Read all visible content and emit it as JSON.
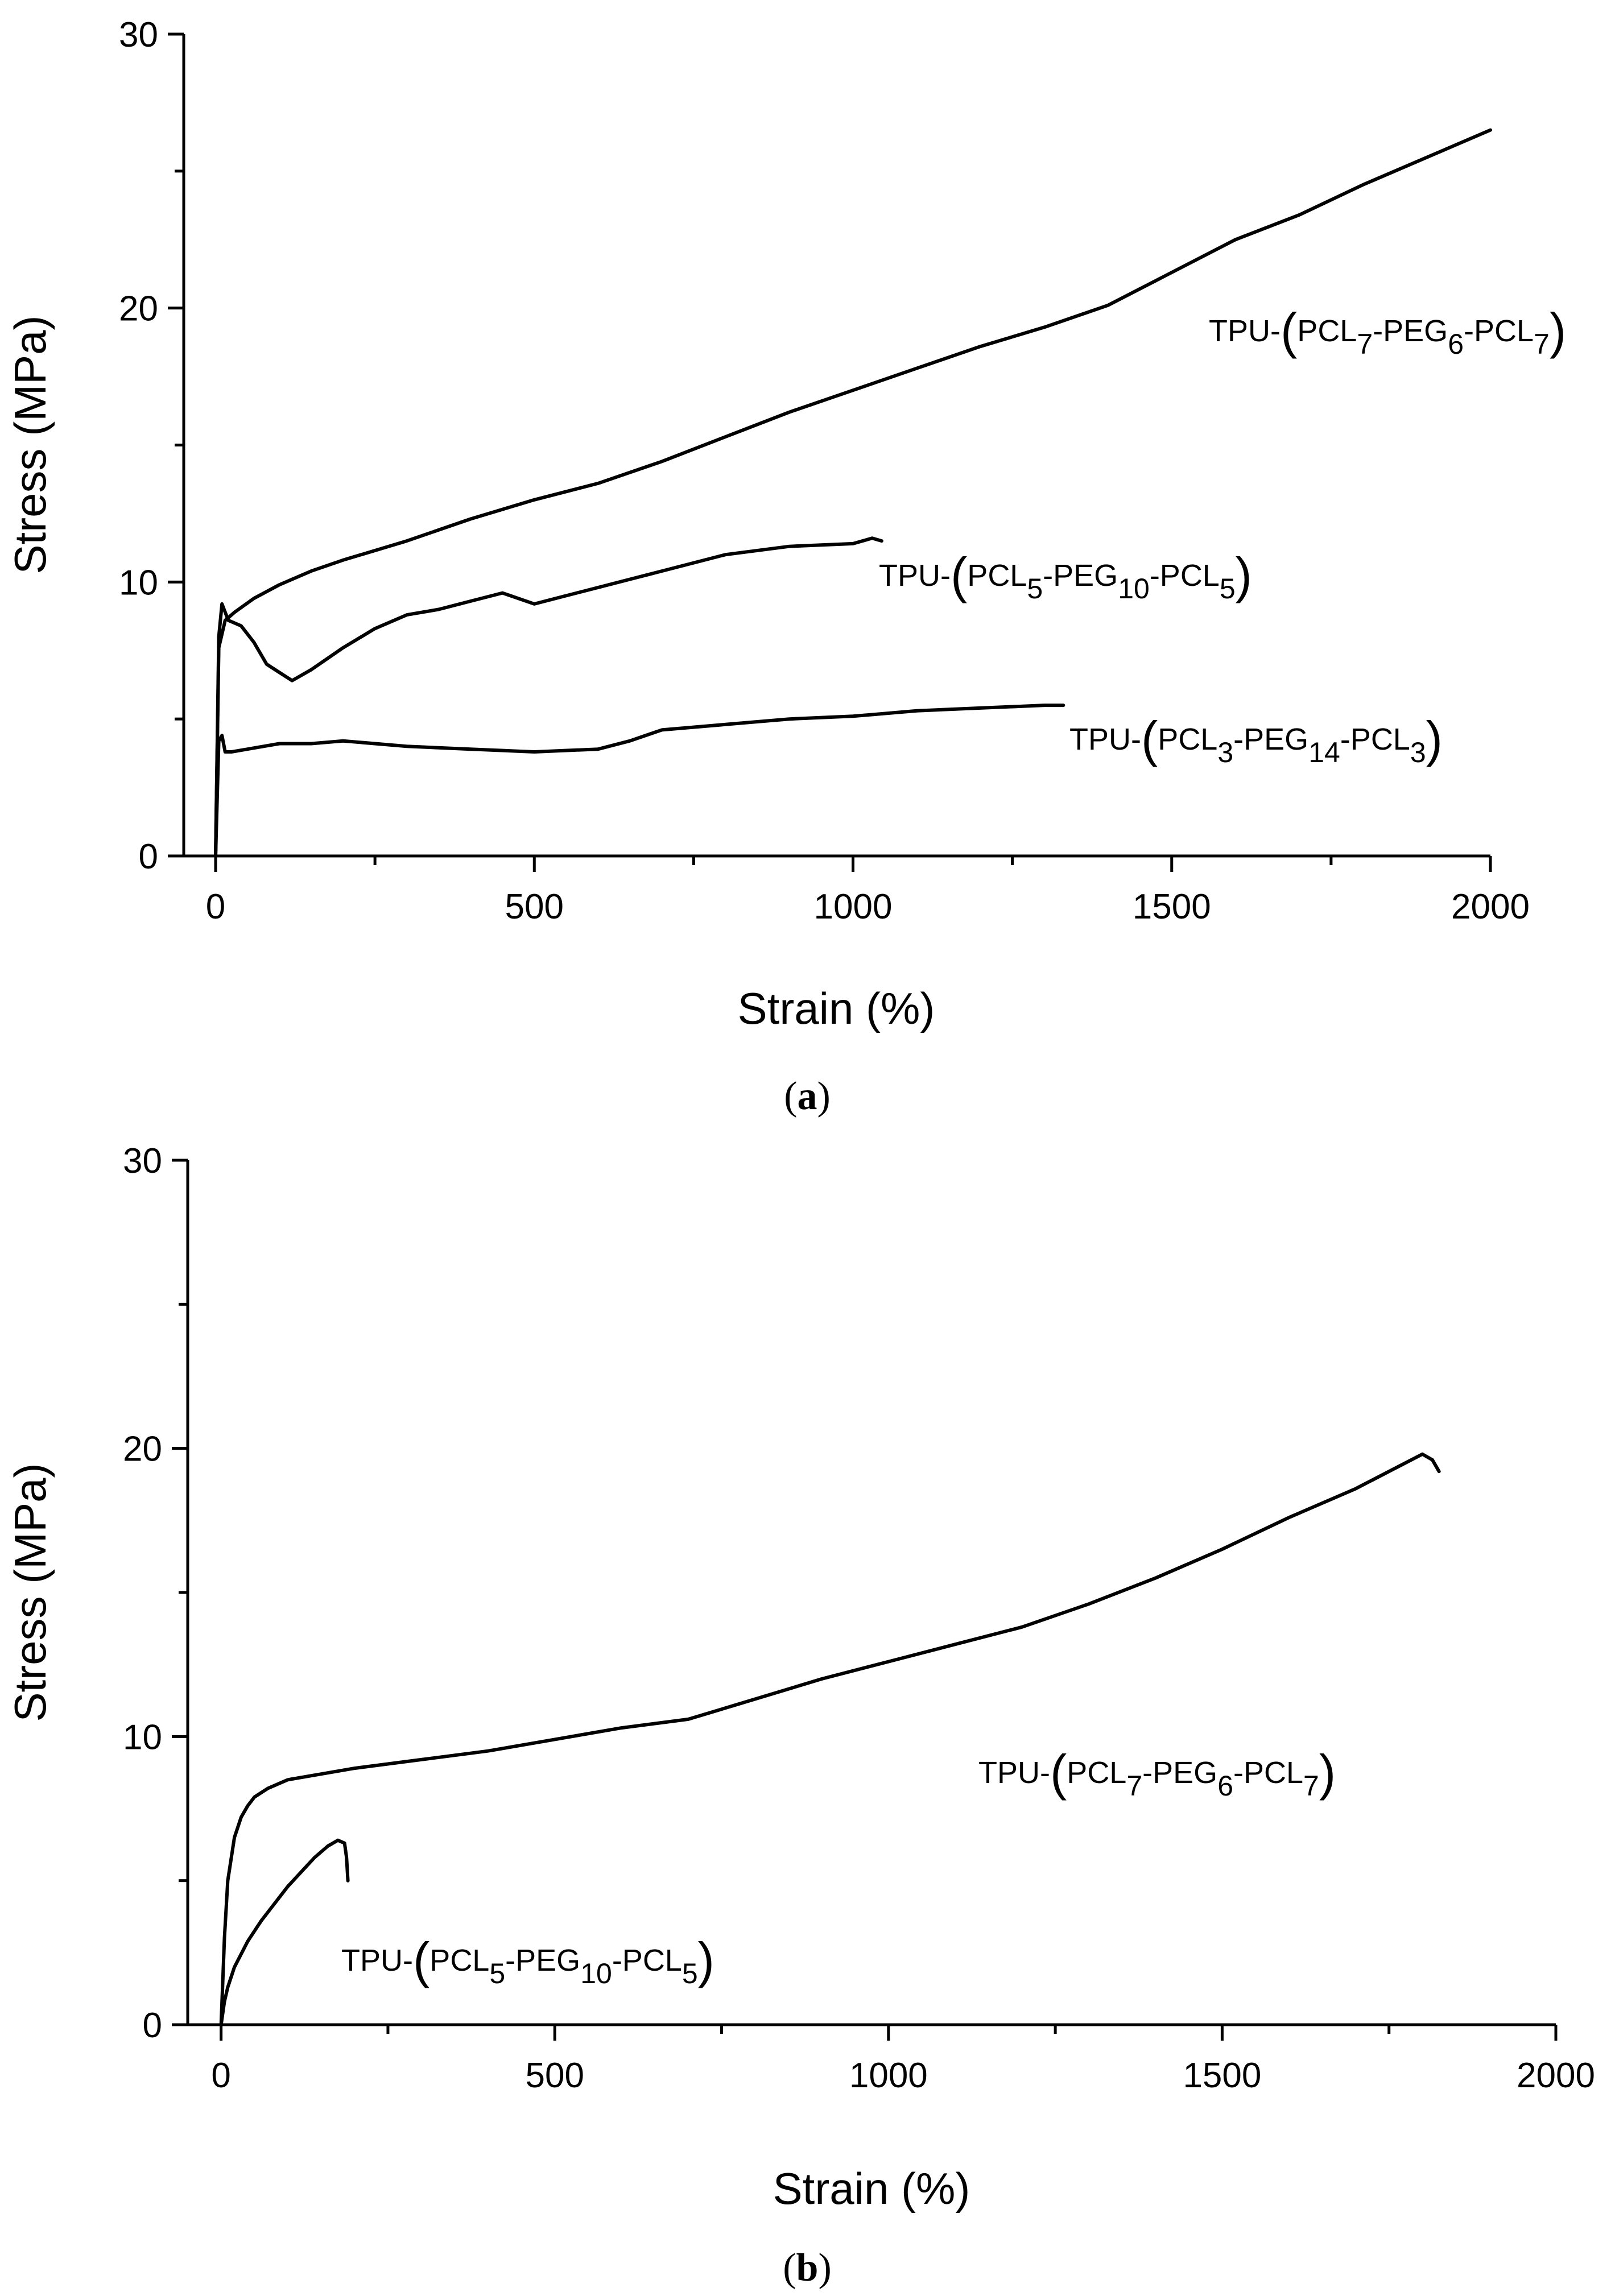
{
  "chart_data": [
    {
      "type": "line",
      "panel_label": "a",
      "xlabel": "Strain (%)",
      "ylabel": "Stress (MPa)",
      "xlim": [
        -50,
        2000
      ],
      "ylim": [
        0,
        30
      ],
      "x_ticks": [
        0,
        500,
        1000,
        1500,
        2000
      ],
      "y_ticks": [
        0,
        10,
        20,
        30
      ],
      "grid": false,
      "series": [
        {
          "name": "TPU-(PCL7-PEG6-PCL7)",
          "label_parts": {
            "prefix": "TPU-",
            "a": "PCL",
            "a_sub": "7",
            "b": "-PEG",
            "b_sub": "6",
            "c": "-PCL",
            "c_sub": "7"
          },
          "x": [
            0,
            5,
            15,
            30,
            60,
            100,
            150,
            200,
            300,
            400,
            500,
            600,
            700,
            800,
            900,
            1000,
            1100,
            1200,
            1300,
            1400,
            1500,
            1600,
            1700,
            1800,
            1900,
            2000
          ],
          "y": [
            0,
            7.6,
            8.6,
            8.9,
            9.4,
            9.9,
            10.4,
            10.8,
            11.5,
            12.3,
            13.0,
            13.6,
            14.4,
            15.3,
            16.2,
            17.0,
            17.8,
            18.6,
            19.3,
            20.1,
            21.3,
            22.5,
            23.4,
            24.5,
            25.5,
            26.5
          ]
        },
        {
          "name": "TPU-(PCL5-PEG10-PCL5)",
          "label_parts": {
            "prefix": "TPU-",
            "a": "PCL",
            "a_sub": "5",
            "b": "-PEG",
            "b_sub": "10",
            "c": "-PCL",
            "c_sub": "5"
          },
          "x": [
            0,
            5,
            10,
            20,
            40,
            60,
            80,
            100,
            120,
            150,
            200,
            250,
            300,
            350,
            400,
            450,
            500,
            550,
            600,
            700,
            800,
            900,
            1000,
            1030,
            1045
          ],
          "y": [
            0,
            8.0,
            9.2,
            8.6,
            8.4,
            7.8,
            7.0,
            6.7,
            6.4,
            6.8,
            7.6,
            8.3,
            8.8,
            9.0,
            9.3,
            9.6,
            9.2,
            9.5,
            9.8,
            10.4,
            11.0,
            11.3,
            11.4,
            11.6,
            11.5
          ]
        },
        {
          "name": "TPU-(PCL3-PEG14-PCL3)",
          "label_parts": {
            "prefix": "TPU-",
            "a": "PCL",
            "a_sub": "3",
            "b": "-PEG",
            "b_sub": "14",
            "c": "-PCL",
            "c_sub": "3"
          },
          "x": [
            0,
            5,
            10,
            15,
            25,
            50,
            100,
            150,
            200,
            300,
            400,
            500,
            600,
            650,
            700,
            800,
            900,
            1000,
            1100,
            1200,
            1300,
            1330
          ],
          "y": [
            0,
            4.2,
            4.4,
            3.8,
            3.8,
            3.9,
            4.1,
            4.1,
            4.2,
            4.0,
            3.9,
            3.8,
            3.9,
            4.2,
            4.6,
            4.8,
            5.0,
            5.1,
            5.3,
            5.4,
            5.5,
            5.5
          ]
        }
      ]
    },
    {
      "type": "line",
      "panel_label": "b",
      "xlabel": "Strain (%)",
      "ylabel": "Stress (MPa)",
      "xlim": [
        -50,
        2000
      ],
      "ylim": [
        0,
        30
      ],
      "x_ticks": [
        0,
        500,
        1000,
        1500,
        2000
      ],
      "y_ticks": [
        0,
        10,
        20,
        30
      ],
      "grid": false,
      "series": [
        {
          "name": "TPU-(PCL7-PEG6-PCL7)",
          "label_parts": {
            "prefix": "TPU-",
            "a": "PCL",
            "a_sub": "7",
            "b": "-PEG",
            "b_sub": "6",
            "c": "-PCL",
            "c_sub": "7"
          },
          "x": [
            0,
            5,
            10,
            20,
            30,
            40,
            50,
            70,
            100,
            150,
            200,
            300,
            400,
            500,
            600,
            700,
            800,
            900,
            1000,
            1100,
            1200,
            1300,
            1400,
            1500,
            1600,
            1700,
            1750,
            1800,
            1815,
            1825
          ],
          "y": [
            0,
            3.0,
            5.0,
            6.5,
            7.2,
            7.6,
            7.9,
            8.2,
            8.5,
            8.7,
            8.9,
            9.2,
            9.5,
            9.9,
            10.3,
            10.6,
            11.3,
            12.0,
            12.6,
            13.2,
            13.8,
            14.6,
            15.5,
            16.5,
            17.6,
            18.6,
            19.2,
            19.8,
            19.6,
            19.2
          ]
        },
        {
          "name": "TPU-(PCL5-PEG10-PCL5)",
          "label_parts": {
            "prefix": "TPU-",
            "a": "PCL",
            "a_sub": "5",
            "b": "-PEG",
            "b_sub": "10",
            "c": "-PCL",
            "c_sub": "5"
          },
          "x": [
            0,
            5,
            10,
            20,
            40,
            60,
            80,
            100,
            120,
            140,
            160,
            175,
            185,
            188,
            190
          ],
          "y": [
            0,
            0.8,
            1.3,
            2.0,
            2.9,
            3.6,
            4.2,
            4.8,
            5.3,
            5.8,
            6.2,
            6.4,
            6.3,
            5.8,
            5.0
          ]
        }
      ]
    }
  ]
}
